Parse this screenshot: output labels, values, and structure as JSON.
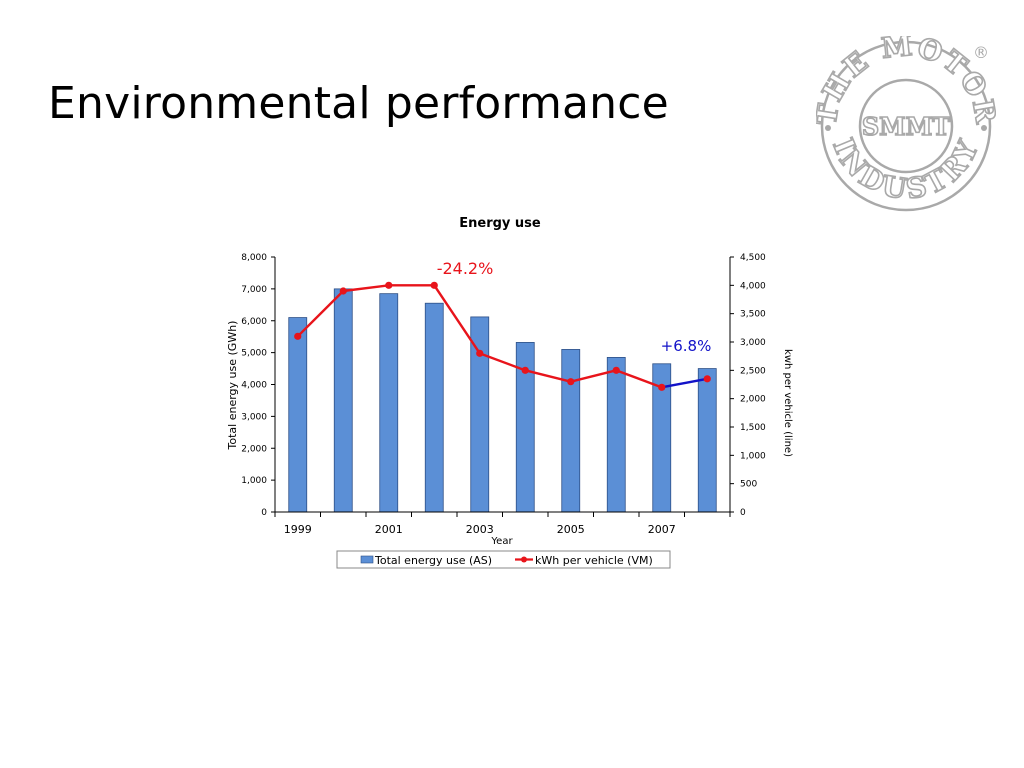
{
  "slide": {
    "title": "Environmental performance"
  },
  "logo": {
    "top_text": "THE MOTOR",
    "bottom_text": "INDUSTRY",
    "center_text": "SMMT",
    "registered_mark": "®",
    "color": "#a9a9a9"
  },
  "chart_data": {
    "type": "bar",
    "title": "Energy use",
    "xlabel": "Year",
    "ylabel": "Total energy use (GWh)",
    "y2label": "kwh per vehicle (line)",
    "ylim": [
      0,
      8000
    ],
    "y2lim": [
      0,
      4500
    ],
    "yticks": [
      "0",
      "1,000",
      "2,000",
      "3,000",
      "4,000",
      "5,000",
      "6,000",
      "7,000",
      "8,000"
    ],
    "y2ticks": [
      "0",
      "500",
      "1,000",
      "1,500",
      "2,000",
      "2,500",
      "3,000",
      "3,500",
      "4,000",
      "4,500"
    ],
    "categories": [
      "1999",
      "2000",
      "2001",
      "2002",
      "2003",
      "2004",
      "2005",
      "2006",
      "2007",
      "2008"
    ],
    "xtick_labels": [
      "1999",
      "",
      "2001",
      "",
      "2003",
      "",
      "2005",
      "",
      "2007",
      ""
    ],
    "series": [
      {
        "name": "Total energy use (AS)",
        "type": "bar",
        "axis": "left",
        "color": "#5b8fd6",
        "values": [
          6100,
          7000,
          6850,
          6550,
          6120,
          5320,
          5100,
          4850,
          4650,
          4500
        ]
      },
      {
        "name": "kWh per vehicle (VM)",
        "type": "line",
        "axis": "right",
        "color": "#e8141b",
        "values": [
          3100,
          3900,
          4000,
          4000,
          2800,
          2500,
          2300,
          2500,
          2200,
          2350
        ]
      }
    ],
    "highlight_segment": {
      "from_index": 8,
      "to_index": 9,
      "color": "#1212c8"
    },
    "annotations": [
      {
        "text": "-24.2%",
        "color": "#e8141b"
      },
      {
        "text": "+6.8%",
        "color": "#1212c8"
      }
    ],
    "legend_position": "bottom"
  }
}
